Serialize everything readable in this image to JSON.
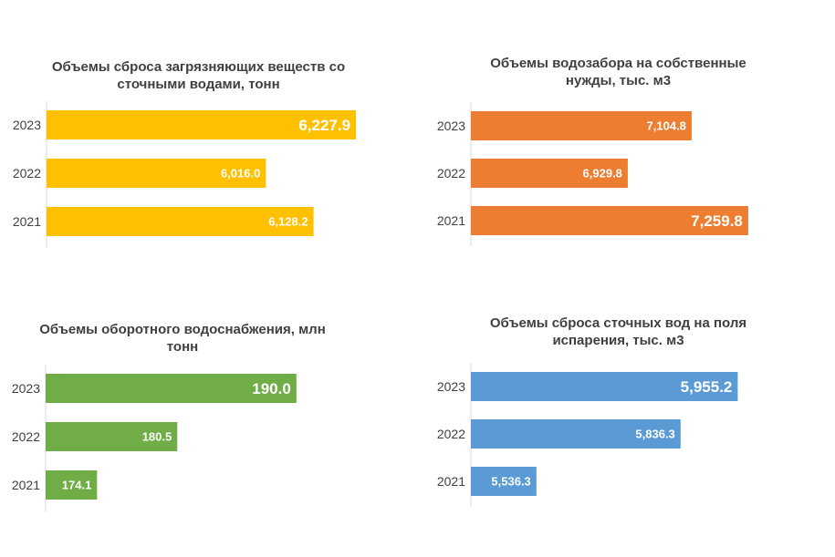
{
  "chart_data": [
    {
      "type": "bar",
      "orientation": "horizontal",
      "title": "Объемы сброса загрязняющих веществ со сточными водами, тонн",
      "categories": [
        "2023",
        "2022",
        "2021"
      ],
      "series": [
        {
          "values": [
            6227.9,
            6016.0,
            6128.2
          ],
          "labels": [
            "6,227.9",
            "6,016.0",
            "6,128.2"
          ],
          "color": "#FFC000"
        }
      ],
      "xlim": [
        5500,
        6260
      ],
      "data_labels": true,
      "grid": false
    },
    {
      "type": "bar",
      "orientation": "horizontal",
      "title": "Объемы водозабора на собственные нужды, тыс. м3",
      "categories": [
        "2023",
        "2022",
        "2021"
      ],
      "series": [
        {
          "values": [
            7104.8,
            6929.8,
            7259.8
          ],
          "labels": [
            "7,104.8",
            "6,929.8",
            "7,259.8"
          ],
          "color": "#ED7D31"
        }
      ],
      "xlim": [
        6500,
        7300
      ],
      "data_labels": true,
      "grid": false
    },
    {
      "type": "bar",
      "orientation": "horizontal",
      "title": "Объемы оборотного водоснабжения, млн тонн",
      "categories": [
        "2023",
        "2022",
        "2021"
      ],
      "series": [
        {
          "values": [
            190.0,
            180.5,
            174.1
          ],
          "labels": [
            "190.0",
            "180.5",
            "174.1"
          ],
          "color": "#70AD47"
        }
      ],
      "xlim": [
        170,
        193
      ],
      "data_labels": true,
      "grid": false
    },
    {
      "type": "bar",
      "orientation": "horizontal",
      "title": "Объемы сброса сточных вод на поля испарения, тыс. м3",
      "categories": [
        "2023",
        "2022",
        "2021"
      ],
      "series": [
        {
          "values": [
            5955.2,
            5836.3,
            5536.3
          ],
          "labels": [
            "5,955.2",
            "5,836.3",
            "5,536.3"
          ],
          "color": "#5B9BD5"
        }
      ],
      "xlim": [
        5400,
        6000
      ],
      "data_labels": true,
      "grid": false
    }
  ]
}
